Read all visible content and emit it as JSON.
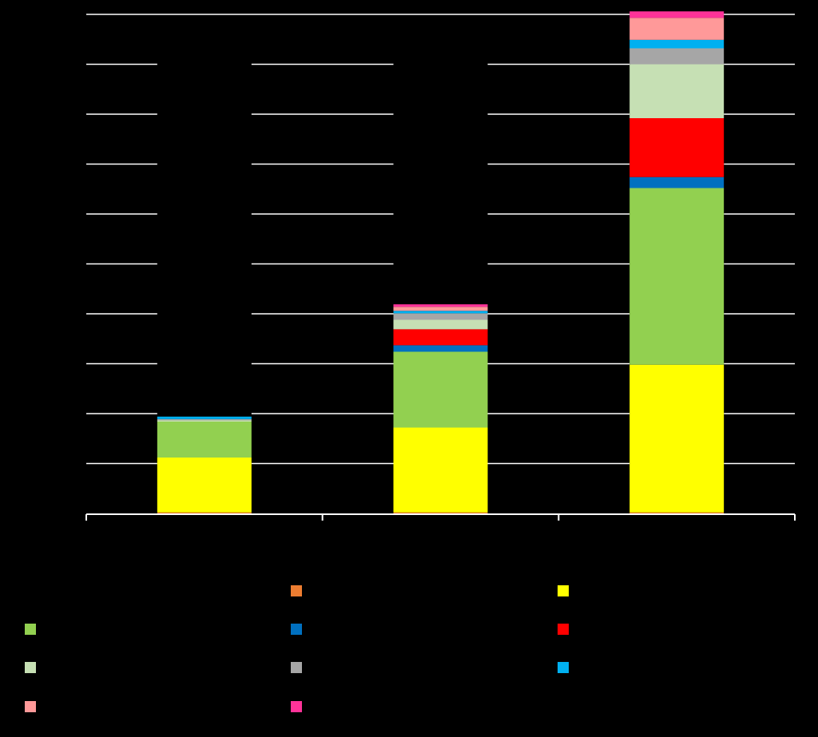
{
  "chart_data": {
    "type": "bar",
    "stacked": true,
    "title": "",
    "xlabel": "",
    "ylabel": "",
    "categories": [
      "",
      "",
      ""
    ],
    "ylim": [
      0,
      100
    ],
    "grid": true,
    "legend_position": "bottom",
    "series": [
      {
        "color": "#ED7D31",
        "values": [
          0.2,
          0.2,
          0.2
        ]
      },
      {
        "color": "#FFFF00",
        "values": [
          11,
          17,
          29.6
        ]
      },
      {
        "color": "#92D050",
        "values": [
          7.2,
          15.2,
          35.4
        ]
      },
      {
        "color": "#0070C0",
        "values": [
          0,
          1.3,
          2.2
        ]
      },
      {
        "color": "#FF0000",
        "values": [
          0,
          3.2,
          11.8
        ]
      },
      {
        "color": "#C6E0B4",
        "values": [
          0.3,
          1.9,
          10.8
        ]
      },
      {
        "color": "#A6A6A6",
        "values": [
          0.2,
          1.3,
          3.2
        ]
      },
      {
        "color": "#00B0F0",
        "values": [
          0.5,
          0.5,
          1.7
        ]
      },
      {
        "color": "#FF9999",
        "values": [
          0,
          0.8,
          4.4
        ]
      },
      {
        "color": "#FF3399",
        "values": [
          0,
          0.5,
          1.3
        ]
      }
    ]
  }
}
